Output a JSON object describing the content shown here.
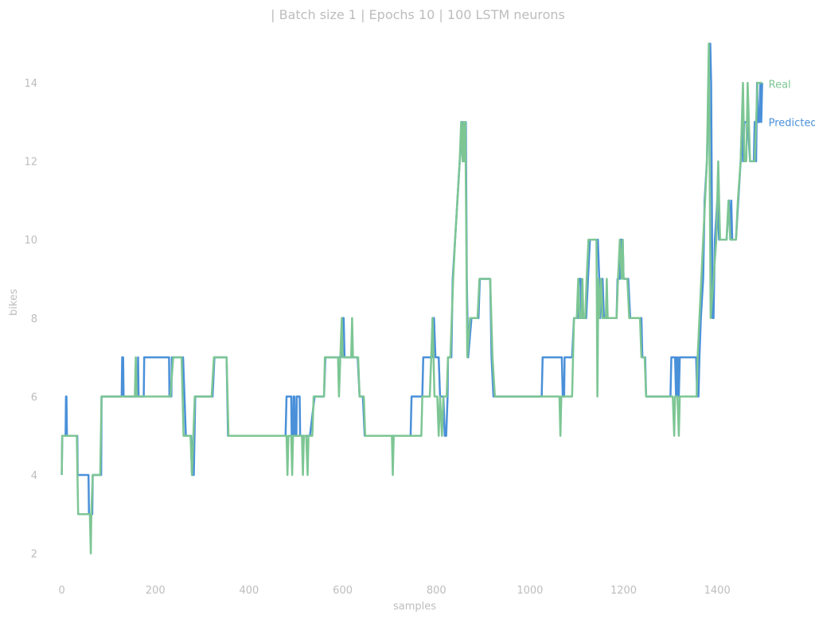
{
  "chart_data": {
    "type": "line",
    "title": "| Batch size 1 | Epochs 10 |  100 LSTM neurons",
    "xlabel": "samples",
    "ylabel": "bikes",
    "xlim": [
      -30,
      1500
    ],
    "ylim": [
      1.2,
      15.3
    ],
    "xticks": [
      0,
      200,
      400,
      600,
      800,
      1000,
      1200,
      1400
    ],
    "yticks": [
      2,
      4,
      6,
      8,
      10,
      12,
      14
    ],
    "grid": false,
    "legend": "inline labels at right end of each series",
    "series": [
      {
        "name": "Predicted",
        "color": "#4a90d9",
        "points": [
          [
            0,
            4
          ],
          [
            1,
            5
          ],
          [
            8,
            5
          ],
          [
            9,
            6
          ],
          [
            10,
            6
          ],
          [
            11,
            5
          ],
          [
            33,
            5
          ],
          [
            34,
            4
          ],
          [
            57,
            4
          ],
          [
            58,
            3
          ],
          [
            65,
            3
          ],
          [
            66,
            4
          ],
          [
            84,
            4
          ],
          [
            85,
            6
          ],
          [
            128,
            6
          ],
          [
            129,
            7
          ],
          [
            131,
            7
          ],
          [
            132,
            6
          ],
          [
            162,
            6
          ],
          [
            163,
            7
          ],
          [
            164,
            6
          ],
          [
            175,
            6
          ],
          [
            176,
            7
          ],
          [
            229,
            7
          ],
          [
            230,
            6
          ],
          [
            234,
            6
          ],
          [
            235,
            7
          ],
          [
            259,
            7
          ],
          [
            262,
            6
          ],
          [
            265,
            5
          ],
          [
            276,
            5
          ],
          [
            278,
            4
          ],
          [
            282,
            4
          ],
          [
            285,
            6
          ],
          [
            322,
            6
          ],
          [
            326,
            7
          ],
          [
            352,
            7
          ],
          [
            355,
            5
          ],
          [
            478,
            5
          ],
          [
            480,
            6
          ],
          [
            490,
            6
          ],
          [
            491,
            5
          ],
          [
            494,
            5
          ],
          [
            495,
            6
          ],
          [
            497,
            6
          ],
          [
            498,
            5
          ],
          [
            501,
            5
          ],
          [
            502,
            6
          ],
          [
            508,
            6
          ],
          [
            509,
            5
          ],
          [
            530,
            5
          ],
          [
            540,
            6
          ],
          [
            560,
            6
          ],
          [
            563,
            7
          ],
          [
            596,
            7
          ],
          [
            599,
            8
          ],
          [
            602,
            8
          ],
          [
            604,
            7
          ],
          [
            632,
            7
          ],
          [
            636,
            6
          ],
          [
            643,
            6
          ],
          [
            647,
            5
          ],
          [
            745,
            5
          ],
          [
            747,
            6
          ],
          [
            770,
            6
          ],
          [
            772,
            7
          ],
          [
            790,
            7
          ],
          [
            792,
            8
          ],
          [
            795,
            8
          ],
          [
            798,
            7
          ],
          [
            805,
            7
          ],
          [
            808,
            6
          ],
          [
            815,
            6
          ],
          [
            818,
            5
          ],
          [
            821,
            5
          ],
          [
            824,
            6
          ],
          [
            825,
            7
          ],
          [
            832,
            7
          ],
          [
            835,
            9
          ],
          [
            840,
            10
          ],
          [
            845,
            11
          ],
          [
            850,
            12
          ],
          [
            855,
            13
          ],
          [
            857,
            12
          ],
          [
            859,
            13
          ],
          [
            861,
            12
          ],
          [
            863,
            13
          ],
          [
            865,
            9
          ],
          [
            868,
            7
          ],
          [
            875,
            8
          ],
          [
            890,
            8
          ],
          [
            893,
            9
          ],
          [
            915,
            9
          ],
          [
            918,
            7
          ],
          [
            922,
            6
          ],
          [
            1025,
            6
          ],
          [
            1027,
            7
          ],
          [
            1068,
            7
          ],
          [
            1070,
            6
          ],
          [
            1073,
            6
          ],
          [
            1074,
            7
          ],
          [
            1088,
            7
          ],
          [
            1090,
            7
          ],
          [
            1094,
            8
          ],
          [
            1102,
            8
          ],
          [
            1104,
            9
          ],
          [
            1108,
            9
          ],
          [
            1110,
            8
          ],
          [
            1120,
            8
          ],
          [
            1124,
            9
          ],
          [
            1128,
            10
          ],
          [
            1145,
            10
          ],
          [
            1148,
            9
          ],
          [
            1150,
            8
          ],
          [
            1152,
            9
          ],
          [
            1155,
            9
          ],
          [
            1158,
            8
          ],
          [
            1185,
            8
          ],
          [
            1187,
            9
          ],
          [
            1192,
            9
          ],
          [
            1194,
            10
          ],
          [
            1198,
            10
          ],
          [
            1200,
            9
          ],
          [
            1210,
            9
          ],
          [
            1214,
            8
          ],
          [
            1238,
            8
          ],
          [
            1240,
            7
          ],
          [
            1246,
            7
          ],
          [
            1248,
            6
          ],
          [
            1300,
            6
          ],
          [
            1302,
            7
          ],
          [
            1310,
            7
          ],
          [
            1312,
            6
          ],
          [
            1313,
            7
          ],
          [
            1315,
            6
          ],
          [
            1316,
            7
          ],
          [
            1318,
            6
          ],
          [
            1320,
            7
          ],
          [
            1355,
            7
          ],
          [
            1357,
            6
          ],
          [
            1360,
            6
          ],
          [
            1362,
            7
          ],
          [
            1365,
            8
          ],
          [
            1370,
            9
          ],
          [
            1373,
            11
          ],
          [
            1378,
            12
          ],
          [
            1382,
            14
          ],
          [
            1385,
            15
          ],
          [
            1387,
            14
          ],
          [
            1390,
            8
          ],
          [
            1392,
            8
          ],
          [
            1395,
            10
          ],
          [
            1400,
            11
          ],
          [
            1404,
            10
          ],
          [
            1420,
            10
          ],
          [
            1425,
            11
          ],
          [
            1428,
            10
          ],
          [
            1430,
            11
          ],
          [
            1432,
            10
          ],
          [
            1440,
            10
          ],
          [
            1445,
            11
          ],
          [
            1450,
            12
          ],
          [
            1453,
            13
          ],
          [
            1455,
            12
          ],
          [
            1458,
            13
          ],
          [
            1465,
            13
          ],
          [
            1470,
            12
          ],
          [
            1478,
            12
          ],
          [
            1480,
            13
          ],
          [
            1483,
            12
          ],
          [
            1485,
            14
          ],
          [
            1487,
            13
          ],
          [
            1490,
            13
          ],
          [
            1492,
            14
          ],
          [
            1494,
            13
          ],
          [
            1496,
            14
          ]
        ]
      },
      {
        "name": "Real",
        "color": "#7dc694",
        "points": [
          [
            0,
            4
          ],
          [
            1,
            5
          ],
          [
            32,
            5
          ],
          [
            35,
            3
          ],
          [
            60,
            3
          ],
          [
            62,
            2
          ],
          [
            63,
            3
          ],
          [
            66,
            4
          ],
          [
            82,
            4
          ],
          [
            85,
            6
          ],
          [
            156,
            6
          ],
          [
            158,
            7
          ],
          [
            160,
            6
          ],
          [
            232,
            6
          ],
          [
            238,
            7
          ],
          [
            256,
            7
          ],
          [
            260,
            5
          ],
          [
            275,
            5
          ],
          [
            278,
            4
          ],
          [
            284,
            6
          ],
          [
            320,
            6
          ],
          [
            325,
            7
          ],
          [
            352,
            7
          ],
          [
            356,
            5
          ],
          [
            480,
            5
          ],
          [
            482,
            4
          ],
          [
            484,
            5
          ],
          [
            490,
            5
          ],
          [
            492,
            4
          ],
          [
            494,
            5
          ],
          [
            513,
            5
          ],
          [
            515,
            4
          ],
          [
            517,
            5
          ],
          [
            522,
            5
          ],
          [
            525,
            4
          ],
          [
            527,
            5
          ],
          [
            535,
            5
          ],
          [
            538,
            6
          ],
          [
            560,
            6
          ],
          [
            562,
            7
          ],
          [
            590,
            7
          ],
          [
            592,
            6
          ],
          [
            595,
            7
          ],
          [
            598,
            8
          ],
          [
            600,
            7
          ],
          [
            618,
            7
          ],
          [
            620,
            8
          ],
          [
            622,
            7
          ],
          [
            633,
            7
          ],
          [
            636,
            6
          ],
          [
            645,
            6
          ],
          [
            648,
            5
          ],
          [
            705,
            5
          ],
          [
            707,
            4
          ],
          [
            709,
            5
          ],
          [
            768,
            5
          ],
          [
            770,
            6
          ],
          [
            786,
            6
          ],
          [
            789,
            7
          ],
          [
            792,
            8
          ],
          [
            796,
            6
          ],
          [
            802,
            6
          ],
          [
            805,
            5
          ],
          [
            808,
            6
          ],
          [
            812,
            5
          ],
          [
            815,
            6
          ],
          [
            822,
            6
          ],
          [
            825,
            7
          ],
          [
            830,
            7
          ],
          [
            833,
            8
          ],
          [
            836,
            9
          ],
          [
            840,
            10
          ],
          [
            845,
            11
          ],
          [
            850,
            12
          ],
          [
            853,
            13
          ],
          [
            856,
            12
          ],
          [
            858,
            13
          ],
          [
            860,
            12
          ],
          [
            862,
            13
          ],
          [
            866,
            7
          ],
          [
            872,
            8
          ],
          [
            888,
            8
          ],
          [
            892,
            9
          ],
          [
            915,
            9
          ],
          [
            920,
            7
          ],
          [
            925,
            6
          ],
          [
            1063,
            6
          ],
          [
            1065,
            5
          ],
          [
            1067,
            6
          ],
          [
            1090,
            6
          ],
          [
            1094,
            8
          ],
          [
            1100,
            8
          ],
          [
            1103,
            9
          ],
          [
            1106,
            8
          ],
          [
            1110,
            8
          ],
          [
            1112,
            9
          ],
          [
            1114,
            8
          ],
          [
            1118,
            8
          ],
          [
            1121,
            9
          ],
          [
            1125,
            10
          ],
          [
            1142,
            10
          ],
          [
            1144,
            6
          ],
          [
            1146,
            9
          ],
          [
            1148,
            8
          ],
          [
            1152,
            9
          ],
          [
            1155,
            8
          ],
          [
            1162,
            8
          ],
          [
            1164,
            9
          ],
          [
            1166,
            8
          ],
          [
            1185,
            8
          ],
          [
            1188,
            9
          ],
          [
            1192,
            10
          ],
          [
            1196,
            9
          ],
          [
            1198,
            10
          ],
          [
            1200,
            9
          ],
          [
            1208,
            9
          ],
          [
            1212,
            8
          ],
          [
            1235,
            8
          ],
          [
            1238,
            7
          ],
          [
            1245,
            7
          ],
          [
            1248,
            6
          ],
          [
            1305,
            6
          ],
          [
            1308,
            5
          ],
          [
            1310,
            6
          ],
          [
            1315,
            6
          ],
          [
            1318,
            5
          ],
          [
            1320,
            6
          ],
          [
            1356,
            6
          ],
          [
            1358,
            7
          ],
          [
            1362,
            8
          ],
          [
            1366,
            9
          ],
          [
            1370,
            10
          ],
          [
            1374,
            11
          ],
          [
            1378,
            12
          ],
          [
            1382,
            15
          ],
          [
            1386,
            8
          ],
          [
            1392,
            9
          ],
          [
            1398,
            10
          ],
          [
            1402,
            12
          ],
          [
            1406,
            10
          ],
          [
            1420,
            10
          ],
          [
            1424,
            11
          ],
          [
            1428,
            10
          ],
          [
            1440,
            10
          ],
          [
            1444,
            11
          ],
          [
            1450,
            12
          ],
          [
            1455,
            14
          ],
          [
            1458,
            12
          ],
          [
            1462,
            12
          ],
          [
            1465,
            14
          ],
          [
            1470,
            12
          ],
          [
            1480,
            12
          ],
          [
            1483,
            13
          ],
          [
            1486,
            14
          ],
          [
            1492,
            14
          ],
          [
            1496,
            14
          ]
        ]
      }
    ]
  }
}
